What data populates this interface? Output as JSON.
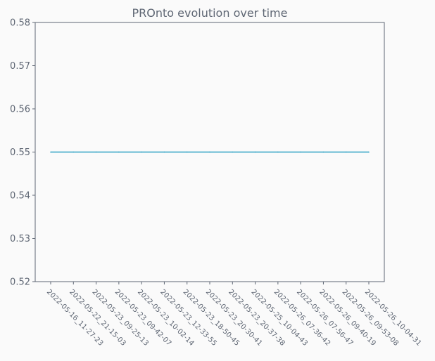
{
  "chart_data": {
    "type": "line",
    "title": "PROnto evolution over time",
    "xlabel": "",
    "ylabel": "",
    "x": [
      "2022-05-16_11-27-23",
      "2022-05-22_21-15-03",
      "2022-05-23_09-25-13",
      "2022-05-23_09-42-07",
      "2022-05-23_10-02-14",
      "2022-05-23_12-33-55",
      "2022-05-23_18-50-45",
      "2022-05-23_20-30-41",
      "2022-05-23_20-37-38",
      "2022-05-25_10-04-43",
      "2022-05-26_07-36-42",
      "2022-05-26_07-56-47",
      "2022-05-26_09-40-19",
      "2022-05-26_09-53-08",
      "2022-05-26_10-04-31"
    ],
    "series": [
      {
        "values": [
          0.55,
          0.55,
          0.55,
          0.55,
          0.55,
          0.55,
          0.55,
          0.55,
          0.55,
          0.55,
          0.55,
          0.55,
          0.55,
          0.55,
          0.55
        ]
      }
    ],
    "ylim": [
      0.52,
      0.58
    ],
    "yticks": [
      "0.52",
      "0.53",
      "0.54",
      "0.55",
      "0.56",
      "0.57",
      "0.58"
    ],
    "grid": false,
    "colors": {
      "line": "#2ca0c4",
      "axes": "#5f6774",
      "text": "#5f6774",
      "background": "#fafafa"
    }
  }
}
